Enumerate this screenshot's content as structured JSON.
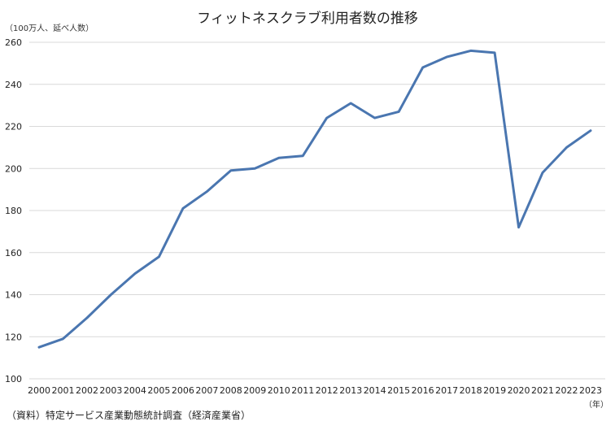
{
  "chart_data": {
    "type": "line",
    "title": "フィットネスクラブ利用者数の推移",
    "ylabel": "（100万人、延べ人数）",
    "xlabel": "（年）",
    "source_note": "（資料）特定サービス産業動態統計調査（経済産業省）",
    "categories": [
      "2000",
      "2001",
      "2002",
      "2003",
      "2004",
      "2005",
      "2006",
      "2007",
      "2008",
      "2009",
      "2010",
      "2011",
      "2012",
      "2013",
      "2014",
      "2015",
      "2016",
      "2017",
      "2018",
      "2019",
      "2020",
      "2021",
      "2022",
      "2023"
    ],
    "series": [
      {
        "values": [
          115,
          119,
          129,
          140,
          150,
          158,
          181,
          189,
          199,
          200,
          205,
          206,
          224,
          231,
          224,
          227,
          248,
          253,
          256,
          255,
          172,
          198,
          210,
          218
        ],
        "color": "#4a76b0"
      }
    ],
    "ylim": [
      100,
      260
    ],
    "yticks": [
      100,
      120,
      140,
      160,
      180,
      200,
      220,
      240,
      260
    ],
    "grid": true,
    "gridColor": "#d9d9d9"
  }
}
